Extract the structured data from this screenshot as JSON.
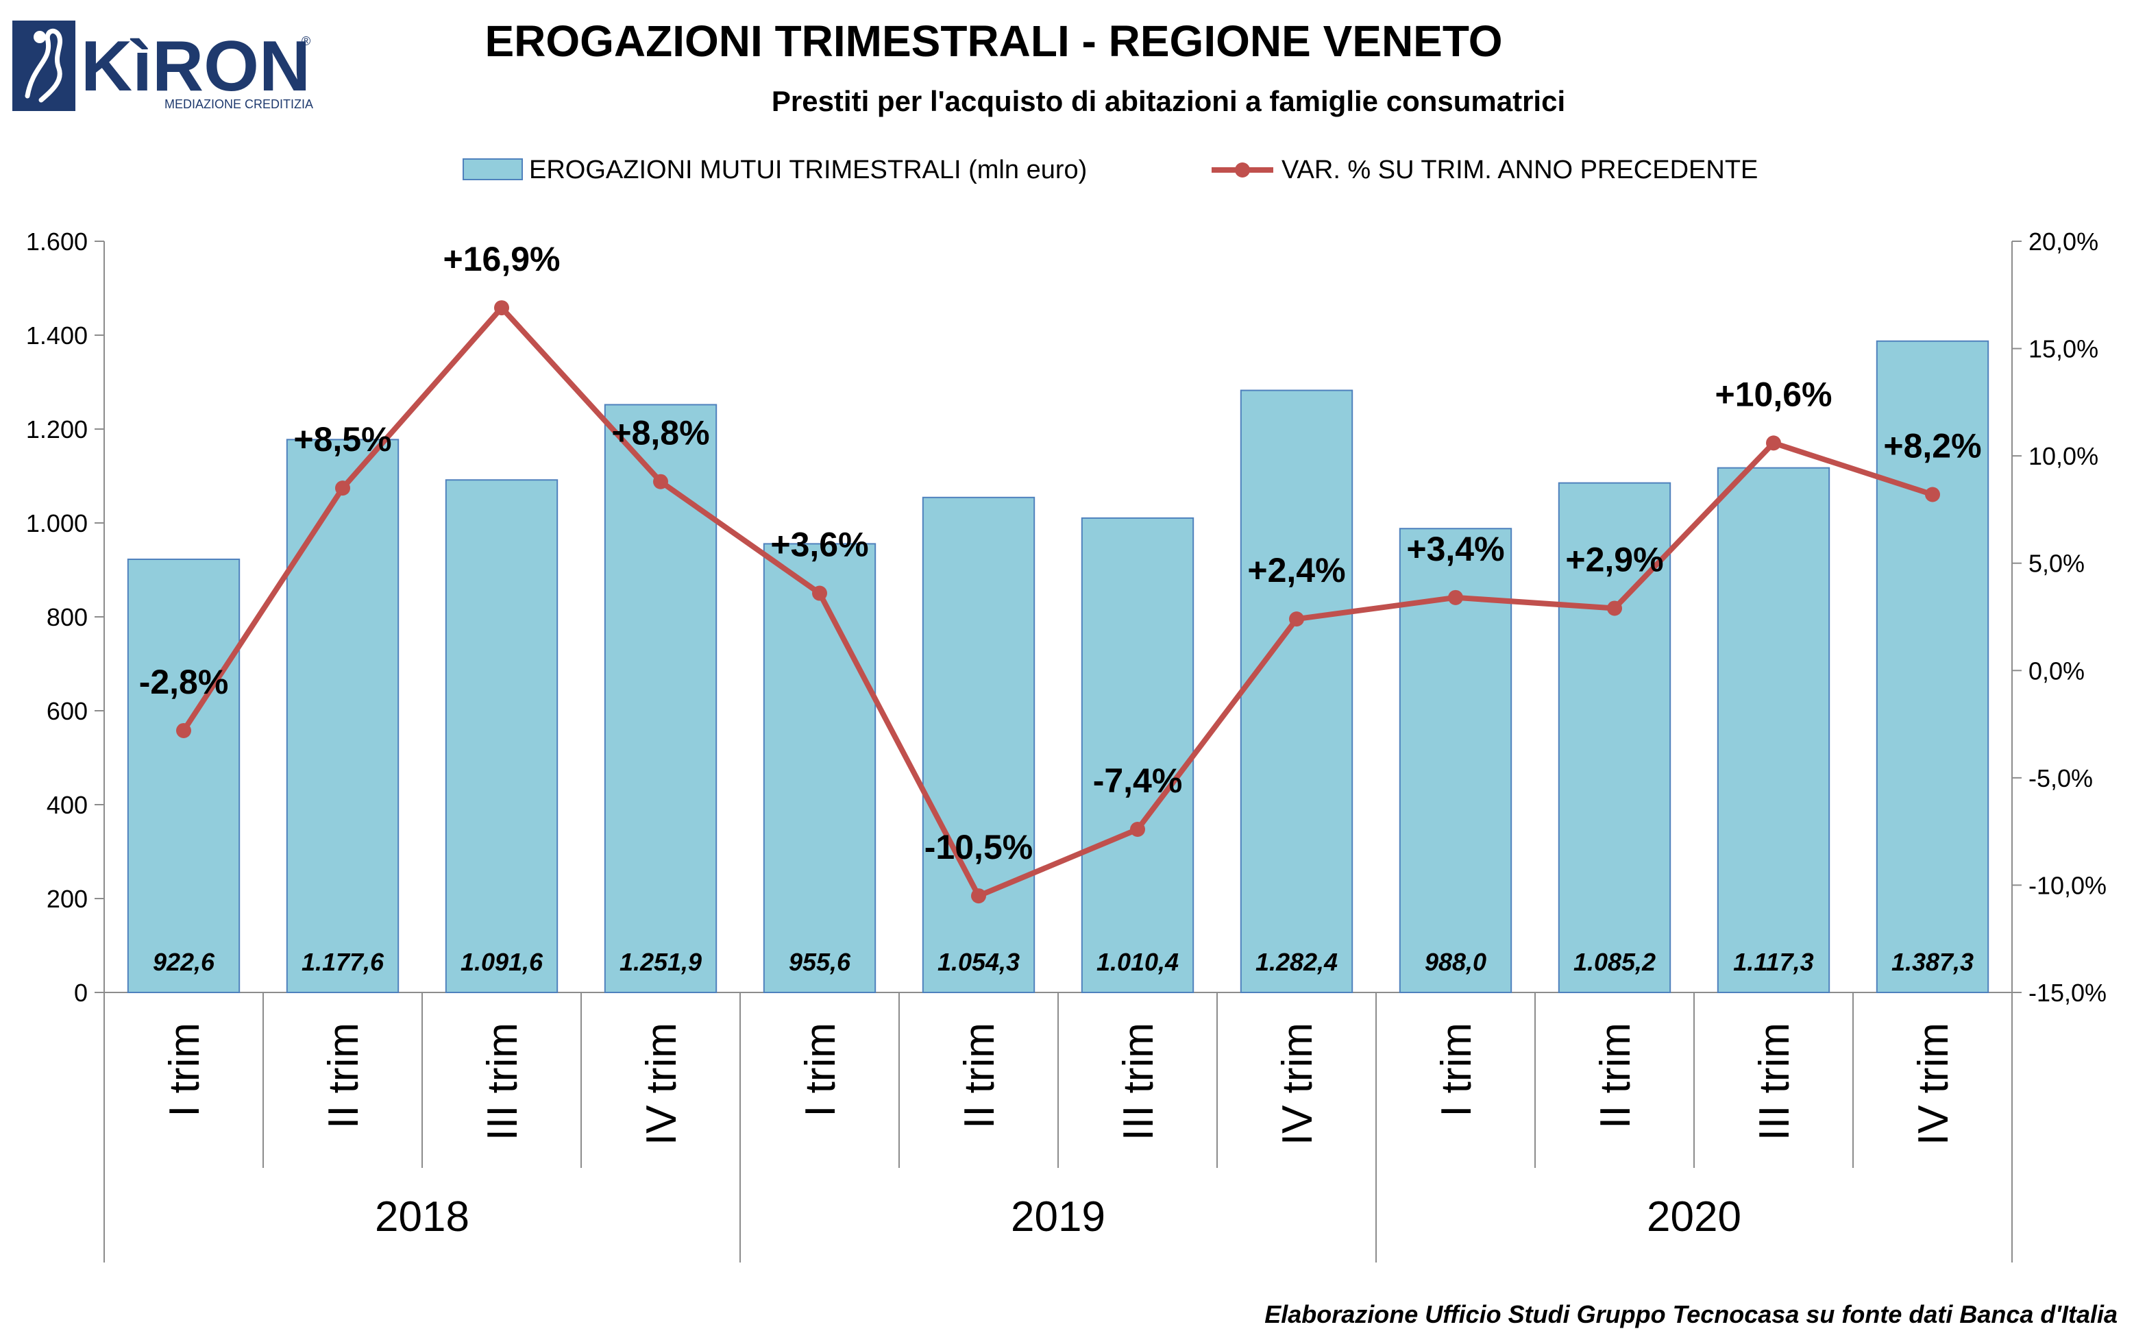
{
  "logo": {
    "name": "KìRON",
    "tagline": "MEDIAZIONE CREDITIZIA",
    "registered": "®"
  },
  "chart_data": {
    "type": "bar",
    "title": "EROGAZIONI TRIMESTRALI - REGIONE VENETO",
    "subtitle": "Prestiti per l'acquisto di abitazioni a famiglie consumatrici",
    "source": "Elaborazione Ufficio Studi Gruppo Tecnocasa su fonte dati Banca d'Italia",
    "legend_position": "top",
    "grid": false,
    "categories": [
      "I trim",
      "II trim",
      "III trim",
      "IV trim",
      "I trim",
      "II trim",
      "III trim",
      "IV trim",
      "I trim",
      "II trim",
      "III trim",
      "IV trim"
    ],
    "groups": [
      {
        "label": "2018",
        "span": 4
      },
      {
        "label": "2019",
        "span": 4
      },
      {
        "label": "2020",
        "span": 4
      }
    ],
    "series": [
      {
        "name": "EROGAZIONI MUTUI TRIMESTRALI (mln euro)",
        "type": "bar",
        "axis": "left",
        "color": "#92cddc",
        "border": "#4f81bd",
        "values": [
          922.6,
          1177.6,
          1091.6,
          1251.9,
          955.6,
          1054.3,
          1010.4,
          1282.4,
          988.0,
          1085.2,
          1117.3,
          1387.3
        ],
        "labels": [
          "922,6",
          "1.177,6",
          "1.091,6",
          "1.251,9",
          "955,6",
          "1.054,3",
          "1.010,4",
          "1.282,4",
          "988,0",
          "1.085,2",
          "1.117,3",
          "1.387,3"
        ]
      },
      {
        "name": "VAR. % SU TRIM. ANNO PRECEDENTE",
        "type": "line",
        "axis": "right",
        "color": "#c0504d",
        "values": [
          -2.8,
          8.5,
          16.9,
          8.8,
          3.6,
          -10.5,
          -7.4,
          2.4,
          3.4,
          2.9,
          10.6,
          8.2
        ],
        "labels": [
          "-2,8%",
          "+8,5%",
          "+16,9%",
          "+8,8%",
          "+3,6%",
          "-10,5%",
          "-7,4%",
          "+2,4%",
          "+3,4%",
          "+2,9%",
          "+10,6%",
          "+8,2%"
        ]
      }
    ],
    "y_left": {
      "min": 0,
      "max": 1600,
      "ticks": [
        0,
        200,
        400,
        600,
        800,
        1000,
        1200,
        1400,
        1600
      ],
      "tick_labels": [
        "0",
        "200",
        "400",
        "600",
        "800",
        "1.000",
        "1.200",
        "1.400",
        "1.600"
      ]
    },
    "y_right": {
      "min": -15,
      "max": 20,
      "ticks": [
        -15,
        -10,
        -5,
        0,
        5,
        10,
        15,
        20
      ],
      "tick_labels": [
        "-15,0%",
        "-10,0%",
        "-5,0%",
        "0,0%",
        "5,0%",
        "10,0%",
        "15,0%",
        "20,0%"
      ]
    }
  }
}
